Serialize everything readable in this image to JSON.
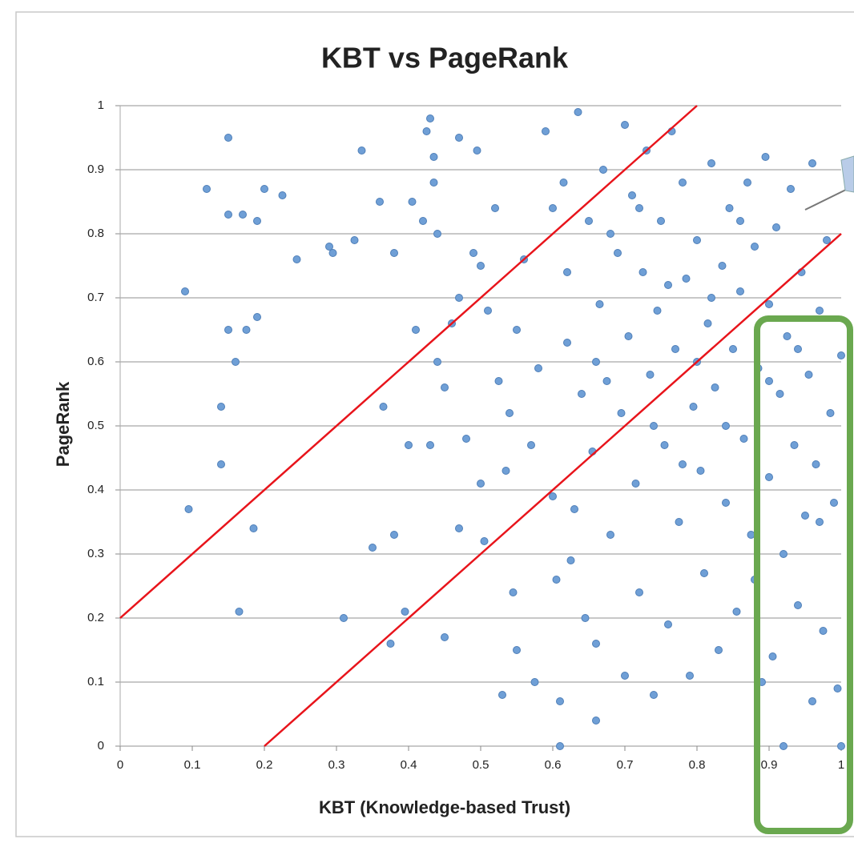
{
  "chart_data": {
    "type": "scatter",
    "title": "KBT vs PageRank",
    "xlabel": "KBT (Knowledge-based Trust)",
    "ylabel": "PageRank",
    "xlim": [
      0,
      1
    ],
    "ylim": [
      0,
      1
    ],
    "xticks": [
      0,
      0.1,
      0.2,
      0.3,
      0.4,
      0.5,
      0.6,
      0.7,
      0.8,
      0.9,
      1
    ],
    "yticks": [
      0,
      0.1,
      0.2,
      0.3,
      0.4,
      0.5,
      0.6,
      0.7,
      0.8,
      0.9,
      1
    ],
    "grid": true,
    "color": "#6f9fd6",
    "x": [
      0.09,
      0.095,
      0.12,
      0.14,
      0.14,
      0.15,
      0.15,
      0.15,
      0.16,
      0.165,
      0.17,
      0.175,
      0.185,
      0.19,
      0.19,
      0.2,
      0.225,
      0.245,
      0.29,
      0.295,
      0.31,
      0.325,
      0.335,
      0.35,
      0.36,
      0.365,
      0.375,
      0.38,
      0.38,
      0.395,
      0.4,
      0.405,
      0.41,
      0.42,
      0.425,
      0.43,
      0.43,
      0.435,
      0.435,
      0.44,
      0.44,
      0.45,
      0.45,
      0.46,
      0.47,
      0.47,
      0.47,
      0.48,
      0.49,
      0.495,
      0.5,
      0.5,
      0.505,
      0.51,
      0.52,
      0.525,
      0.53,
      0.535,
      0.54,
      0.545,
      0.55,
      0.55,
      0.56,
      0.57,
      0.575,
      0.58,
      0.59,
      0.6,
      0.6,
      0.605,
      0.61,
      0.61,
      0.615,
      0.62,
      0.62,
      0.625,
      0.63,
      0.635,
      0.64,
      0.645,
      0.65,
      0.655,
      0.66,
      0.66,
      0.665,
      0.67,
      0.675,
      0.68,
      0.69,
      0.695,
      0.7,
      0.7,
      0.705,
      0.71,
      0.715,
      0.72,
      0.725,
      0.73,
      0.735,
      0.74,
      0.745,
      0.75,
      0.755,
      0.76,
      0.765,
      0.77,
      0.775,
      0.78,
      0.785,
      0.79,
      0.795,
      0.8,
      0.805,
      0.81,
      0.815,
      0.82,
      0.825,
      0.83,
      0.835,
      0.84,
      0.845,
      0.85,
      0.855,
      0.86,
      0.865,
      0.87,
      0.875,
      0.88,
      0.885,
      0.89,
      0.895,
      0.9,
      0.9,
      0.905,
      0.91,
      0.915,
      0.92,
      0.92,
      0.925,
      0.93,
      0.935,
      0.94,
      0.945,
      0.95,
      0.955,
      0.96,
      0.96,
      0.965,
      0.97,
      0.975,
      0.98,
      0.985,
      0.99,
      0.995,
      1,
      1,
      0.72,
      0.76,
      0.8,
      0.84,
      0.68,
      0.74,
      0.78,
      0.82,
      0.86,
      0.88,
      0.9,
      0.94,
      0.97,
      0.66
    ],
    "values": [
      0.71,
      0.37,
      0.87,
      0.53,
      0.44,
      0.95,
      0.83,
      0.65,
      0.6,
      0.21,
      0.83,
      0.65,
      0.34,
      0.82,
      0.67,
      0.87,
      0.86,
      0.76,
      0.78,
      0.77,
      0.2,
      0.79,
      0.93,
      0.31,
      0.85,
      0.53,
      0.16,
      0.77,
      0.33,
      0.21,
      0.47,
      0.85,
      0.65,
      0.82,
      0.96,
      0.98,
      0.47,
      0.92,
      0.88,
      0.8,
      0.6,
      0.56,
      0.17,
      0.66,
      0.95,
      0.7,
      0.34,
      0.48,
      0.77,
      0.93,
      0.41,
      0.75,
      0.32,
      0.68,
      0.84,
      0.57,
      0.08,
      0.43,
      0.52,
      0.24,
      0.65,
      0.15,
      0.76,
      0.47,
      0.1,
      0.59,
      0.96,
      0.84,
      0.39,
      0.26,
      0,
      0.07,
      0.88,
      0.74,
      0.63,
      0.29,
      0.37,
      0.99,
      0.55,
      0.2,
      0.82,
      0.46,
      0.04,
      0.16,
      0.69,
      0.9,
      0.57,
      0.33,
      0.77,
      0.52,
      0.97,
      0.11,
      0.64,
      0.86,
      0.41,
      0.24,
      0.74,
      0.93,
      0.58,
      0.08,
      0.68,
      0.82,
      0.47,
      0.19,
      0.96,
      0.62,
      0.35,
      0.88,
      0.73,
      0.11,
      0.53,
      0.79,
      0.43,
      0.27,
      0.66,
      0.91,
      0.56,
      0.15,
      0.75,
      0.38,
      0.84,
      0.62,
      0.21,
      0.71,
      0.48,
      0.88,
      0.33,
      0.78,
      0.59,
      0.1,
      0.92,
      0.69,
      0.42,
      0.14,
      0.81,
      0.55,
      0,
      0.3,
      0.64,
      0.87,
      0.47,
      0.22,
      0.74,
      0.36,
      0.58,
      0.91,
      0.07,
      0.44,
      0.68,
      0.18,
      0.79,
      0.52,
      0.38,
      0.09,
      0.61,
      0,
      0.84,
      0.72,
      0.6,
      0.5,
      0.8,
      0.5,
      0.44,
      0.7,
      0.82,
      0.26,
      0.57,
      0.62,
      0.35,
      0.6
    ],
    "reference_lines": [
      {
        "x": [
          0,
          0.8
        ],
        "y": [
          0.2,
          1
        ],
        "color": "#e8141b"
      },
      {
        "x": [
          0.2,
          1
        ],
        "y": [
          0,
          0.8
        ],
        "color": "#e8141b"
      }
    ]
  }
}
